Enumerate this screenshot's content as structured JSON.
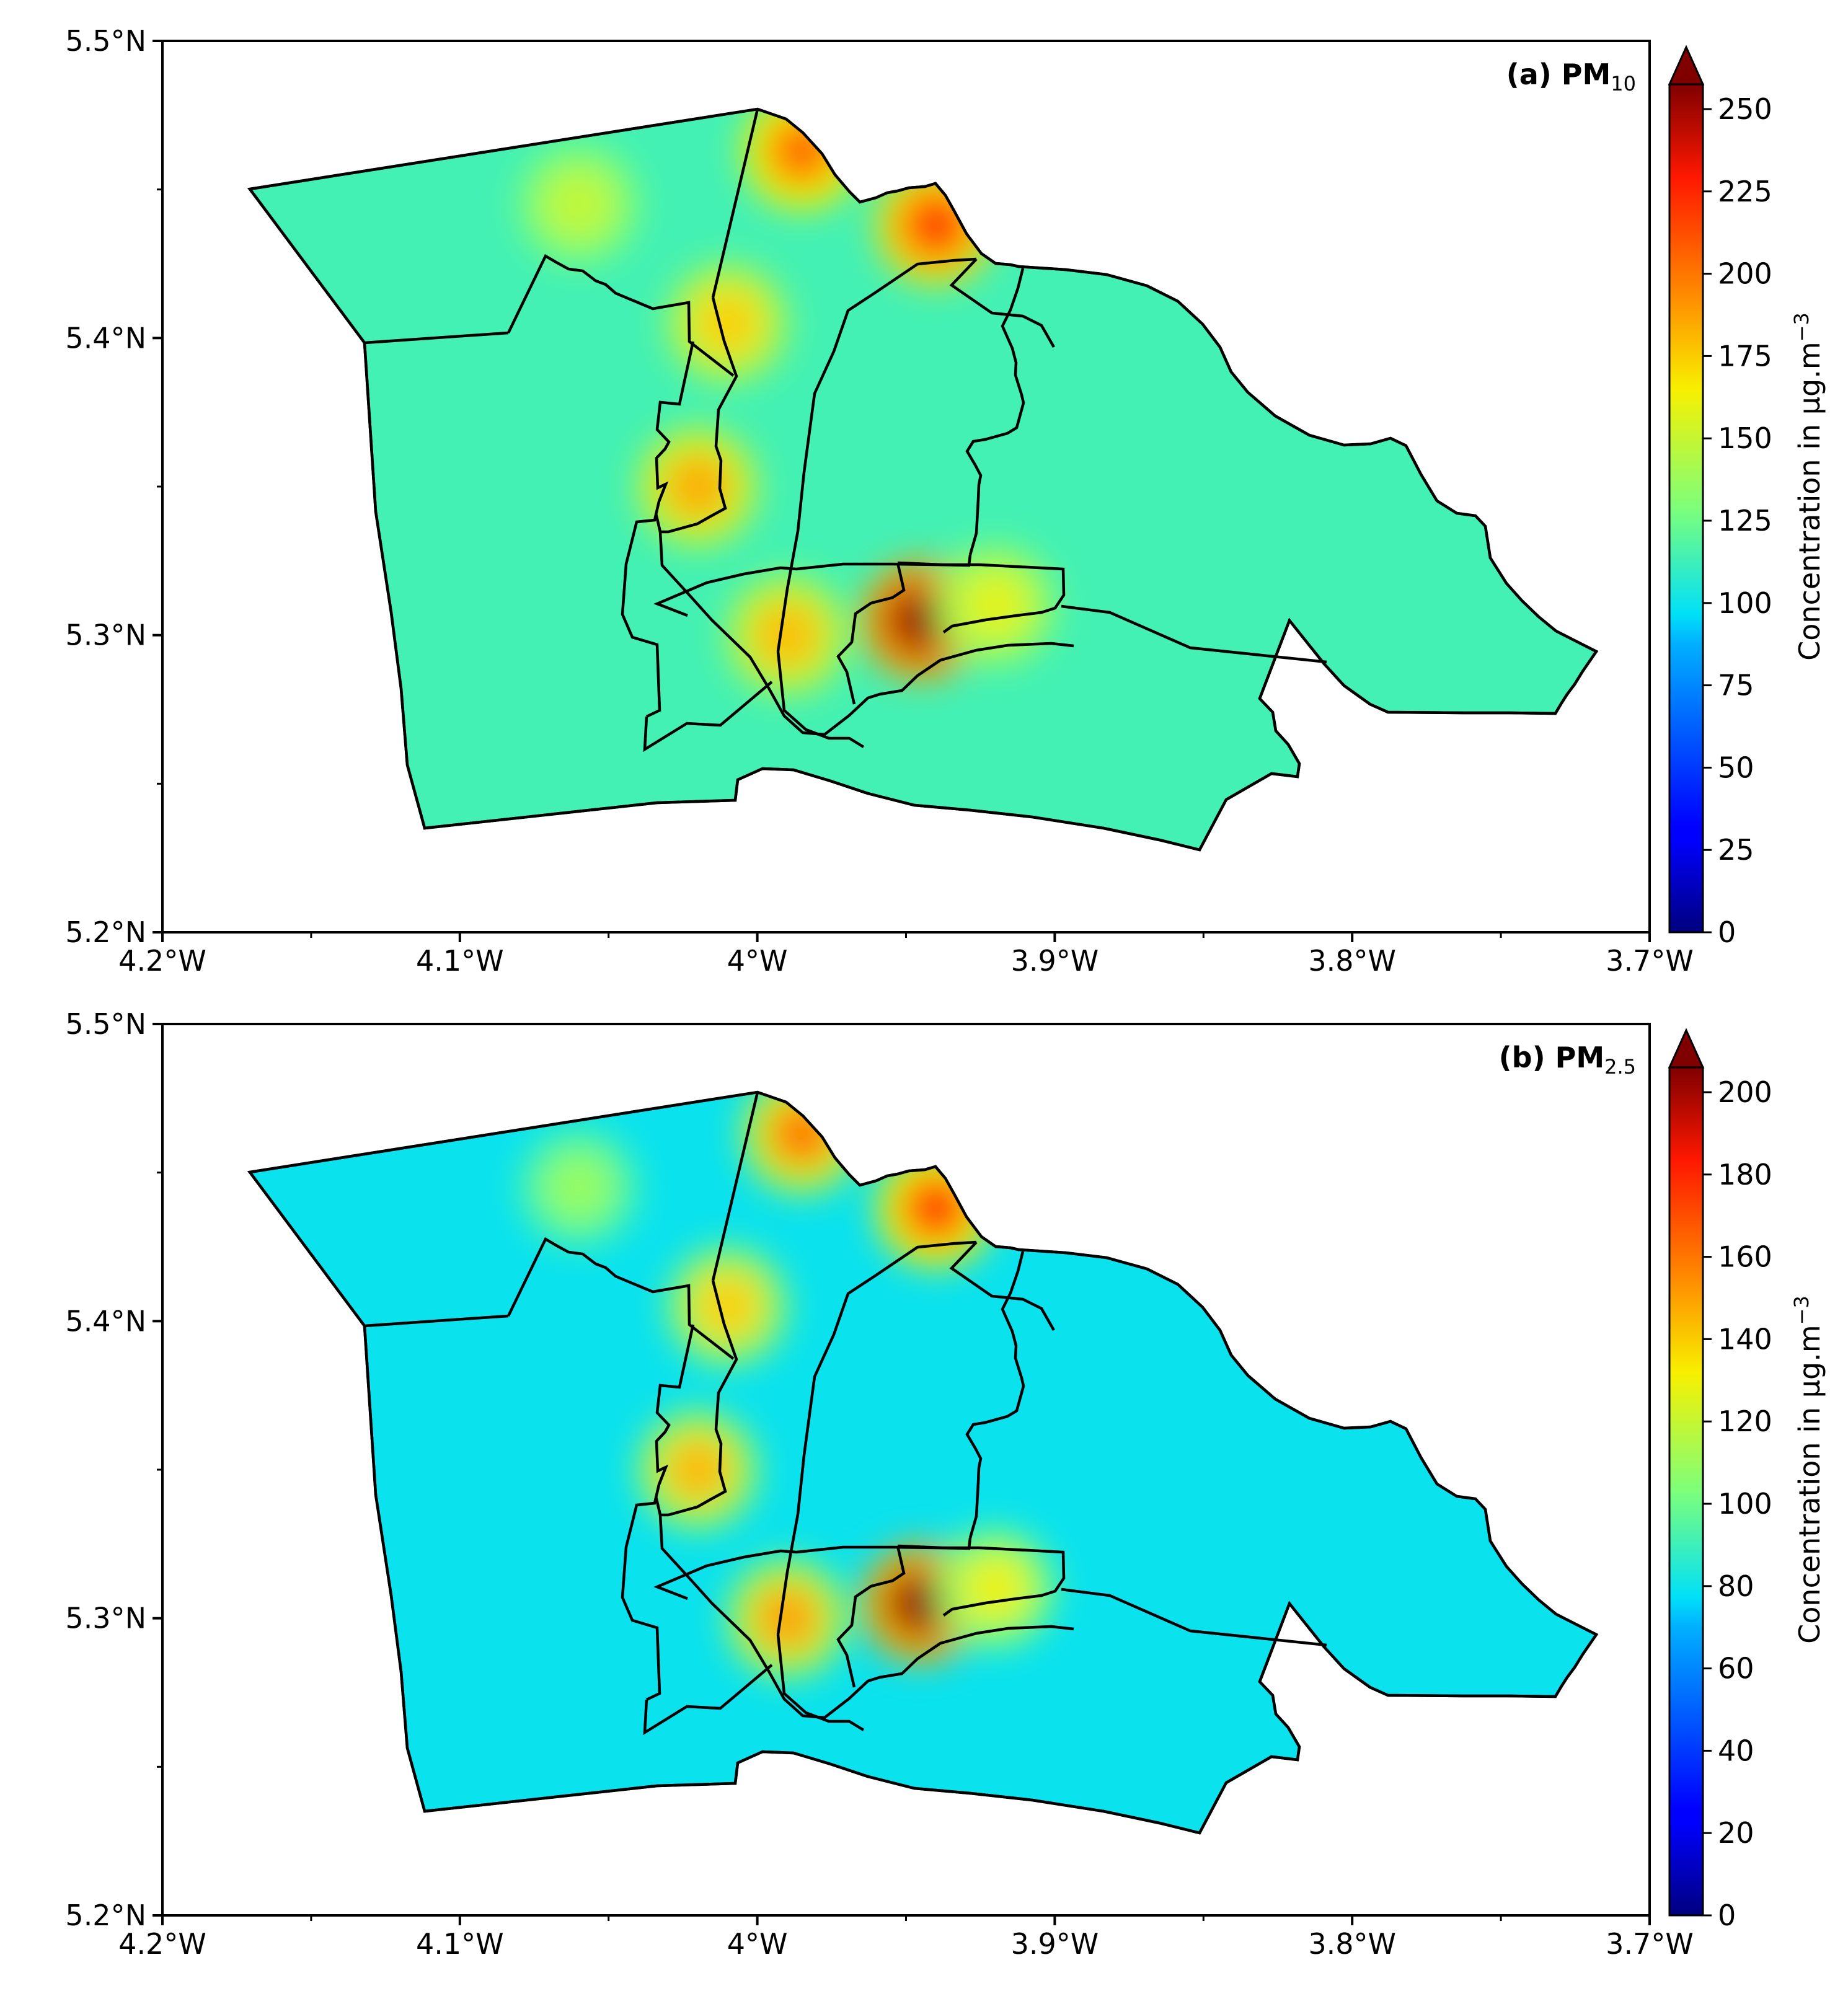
{
  "panels": [
    {
      "title_prefix": "(a) PM",
      "title_subscript": "10",
      "colorbar_label": "Concentration in μg.m",
      "colorbar_exponent": "−3",
      "colorbar_ticks": [
        "0",
        "25",
        "50",
        "75",
        "100",
        "125",
        "150",
        "175",
        "200",
        "225",
        "250"
      ],
      "colorbar_range": [
        0,
        260
      ],
      "hotspots": [
        {
          "lon": -3.945,
          "lat": 5.305,
          "value": 255
        },
        {
          "lon": -3.94,
          "lat": 5.438,
          "value": 220
        },
        {
          "lon": -3.985,
          "lat": 5.463,
          "value": 205
        },
        {
          "lon": -4.02,
          "lat": 5.35,
          "value": 185
        },
        {
          "lon": -4.01,
          "lat": 5.405,
          "value": 175
        },
        {
          "lon": -3.99,
          "lat": 5.3,
          "value": 180
        },
        {
          "lon": -4.06,
          "lat": 5.445,
          "value": 150
        },
        {
          "lon": -3.92,
          "lat": 5.31,
          "value": 160
        }
      ],
      "background_value": 115
    },
    {
      "title_prefix": "(b) PM",
      "title_subscript": "2.5",
      "colorbar_label": "Concentration in μg.m",
      "colorbar_exponent": "−3",
      "colorbar_ticks": [
        "0",
        "20",
        "40",
        "60",
        "80",
        "100",
        "120",
        "140",
        "160",
        "180",
        "200"
      ],
      "colorbar_range": [
        0,
        208
      ],
      "hotspots": [
        {
          "lon": -3.945,
          "lat": 5.305,
          "value": 205
        },
        {
          "lon": -3.94,
          "lat": 5.438,
          "value": 175
        },
        {
          "lon": -3.985,
          "lat": 5.463,
          "value": 160
        },
        {
          "lon": -4.02,
          "lat": 5.35,
          "value": 145
        },
        {
          "lon": -4.01,
          "lat": 5.405,
          "value": 140
        },
        {
          "lon": -3.99,
          "lat": 5.3,
          "value": 150
        },
        {
          "lon": -4.06,
          "lat": 5.445,
          "value": 110
        },
        {
          "lon": -3.92,
          "lat": 5.31,
          "value": 130
        }
      ],
      "background_value": 80
    }
  ],
  "axes": {
    "xticks": [
      {
        "lon": -4.2,
        "label": "4.2°W"
      },
      {
        "lon": -4.1,
        "label": "4.1°W"
      },
      {
        "lon": -4.0,
        "label": "4°W"
      },
      {
        "lon": -3.9,
        "label": "3.9°W"
      },
      {
        "lon": -3.8,
        "label": "3.8°W"
      },
      {
        "lon": -3.7,
        "label": "3.7°W"
      }
    ],
    "yticks": [
      {
        "lat": 5.5,
        "label": "5.5°N"
      },
      {
        "lat": 5.4,
        "label": "5.4°N"
      },
      {
        "lat": 5.3,
        "label": "5.3°N"
      },
      {
        "lat": 5.2,
        "label": "5.2°N"
      }
    ],
    "lon_range": [
      -4.2,
      -3.7
    ],
    "lat_range": [
      5.2,
      5.5
    ]
  }
}
